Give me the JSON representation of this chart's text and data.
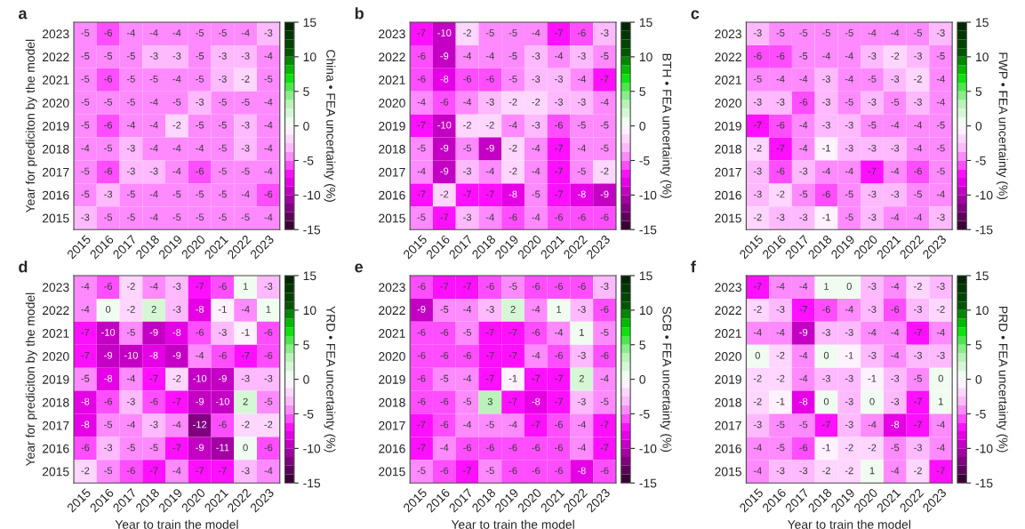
{
  "chart_data": [
    {
      "type": "heatmap",
      "title": "a",
      "ylabel": "Year for prediciton by the model",
      "clabel": "China • FEA uncertainty (%)",
      "data_labels": true,
      "categories": [
        "2015",
        "2016",
        "2017",
        "2018",
        "2019",
        "2020",
        "2021",
        "2022",
        "2023"
      ],
      "y_categories": [
        "2023",
        "2022",
        "2021",
        "2020",
        "2019",
        "2018",
        "2017",
        "2016",
        "2015"
      ],
      "clim": [
        -15,
        15
      ],
      "cticks": [
        -15,
        -10,
        -5,
        0,
        5,
        10,
        15
      ],
      "cells": [
        [
          -5,
          -6,
          -4,
          -4,
          -4,
          -5,
          -5,
          -4,
          -3
        ],
        [
          -5,
          -5,
          -5,
          -3,
          -3,
          -5,
          -3,
          -3,
          -4
        ],
        [
          -5,
          -6,
          -5,
          -5,
          -4,
          -5,
          -3,
          -2,
          -5
        ],
        [
          -5,
          -5,
          -5,
          -4,
          -5,
          -3,
          -5,
          -5,
          -4
        ],
        [
          -5,
          -6,
          -4,
          -4,
          -2,
          -5,
          -5,
          -3,
          -4
        ],
        [
          -4,
          -5,
          -3,
          -4,
          -4,
          -4,
          -5,
          -3,
          -4
        ],
        [
          -5,
          -6,
          -3,
          -3,
          -4,
          -6,
          -5,
          -5,
          -4
        ],
        [
          -5,
          -3,
          -5,
          -4,
          -5,
          -5,
          -5,
          -4,
          -6
        ],
        [
          -3,
          -5,
          -5,
          -4,
          -5,
          -5,
          -5,
          -5,
          -4
        ]
      ]
    },
    {
      "type": "heatmap",
      "title": "b",
      "clabel": "BTH • FEA uncertainty (%)",
      "data_labels": true,
      "categories": [
        "2015",
        "2016",
        "2017",
        "2018",
        "2019",
        "2020",
        "2021",
        "2022",
        "2023"
      ],
      "y_categories": [
        "2023",
        "2022",
        "2021",
        "2020",
        "2019",
        "2018",
        "2017",
        "2016",
        "2015"
      ],
      "clim": [
        -15,
        15
      ],
      "cticks": [
        -15,
        -10,
        -5,
        0,
        5,
        10,
        15
      ],
      "cells": [
        [
          -7,
          -10,
          -2,
          -5,
          -5,
          -4,
          -7,
          -6,
          -3
        ],
        [
          -6,
          -9,
          -4,
          -4,
          -5,
          -3,
          -4,
          -3,
          -5
        ],
        [
          -6,
          -8,
          -6,
          -6,
          -5,
          -3,
          -3,
          -4,
          -7
        ],
        [
          -4,
          -6,
          -4,
          -3,
          -2,
          -2,
          -3,
          -3,
          -4
        ],
        [
          -7,
          -10,
          -2,
          -2,
          -4,
          -3,
          -6,
          -5,
          -5
        ],
        [
          -5,
          -9,
          -5,
          -9,
          -2,
          -4,
          -7,
          -4,
          -5
        ],
        [
          -4,
          -9,
          -3,
          -4,
          -2,
          -4,
          -7,
          -5,
          -2
        ],
        [
          -7,
          -2,
          -7,
          -7,
          -8,
          -5,
          -7,
          -8,
          -9
        ],
        [
          -5,
          -7,
          -3,
          -4,
          -6,
          -4,
          -6,
          -6,
          -6
        ]
      ]
    },
    {
      "type": "heatmap",
      "title": "c",
      "clabel": "FWP • FEA uncertainty (%)",
      "data_labels": true,
      "categories": [
        "2015",
        "2016",
        "2017",
        "2018",
        "2019",
        "2020",
        "2021",
        "2022",
        "2023"
      ],
      "y_categories": [
        "2023",
        "2022",
        "2021",
        "2020",
        "2019",
        "2018",
        "2017",
        "2016",
        "2015"
      ],
      "clim": [
        -15,
        15
      ],
      "cticks": [
        -15,
        -10,
        -5,
        0,
        5,
        10,
        15
      ],
      "cells": [
        [
          -3,
          -5,
          -5,
          -5,
          -5,
          -4,
          -4,
          -5,
          -3
        ],
        [
          -6,
          -6,
          -5,
          -4,
          -4,
          -3,
          -2,
          -3,
          -5
        ],
        [
          -5,
          -4,
          -4,
          -3,
          -4,
          -5,
          -3,
          -2,
          -4
        ],
        [
          -3,
          -3,
          -6,
          -3,
          -5,
          -3,
          -5,
          -3,
          -4
        ],
        [
          -7,
          -6,
          -4,
          -3,
          -3,
          -5,
          -4,
          -4,
          -5
        ],
        [
          -2,
          -7,
          -4,
          -1,
          -3,
          -3,
          -3,
          -4,
          -5
        ],
        [
          -3,
          -6,
          -3,
          -4,
          -4,
          -7,
          -4,
          -6,
          -5
        ],
        [
          -3,
          -2,
          -5,
          -6,
          -5,
          -3,
          -3,
          -5,
          -4
        ],
        [
          -2,
          -3,
          -3,
          -1,
          -5,
          -3,
          -4,
          -4,
          -3
        ]
      ]
    },
    {
      "type": "heatmap",
      "title": "d",
      "xlabel": "Year to train the model",
      "ylabel": "Year for prediciton by the model",
      "clabel": "YRD • FEA uncertainty (%)",
      "data_labels": true,
      "categories": [
        "2015",
        "2016",
        "2017",
        "2018",
        "2019",
        "2020",
        "2021",
        "2022",
        "2023"
      ],
      "y_categories": [
        "2023",
        "2022",
        "2021",
        "2020",
        "2019",
        "2018",
        "2017",
        "2016",
        "2015"
      ],
      "clim": [
        -15,
        15
      ],
      "cticks": [
        -15,
        -10,
        -5,
        0,
        5,
        10,
        15
      ],
      "cells": [
        [
          -4,
          -6,
          -2,
          -4,
          -3,
          -7,
          -6,
          1,
          -3
        ],
        [
          -4,
          0,
          -2,
          2,
          -3,
          -8,
          -1,
          -4,
          1
        ],
        [
          -7,
          -10,
          -5,
          -9,
          -8,
          -6,
          -3,
          -1,
          -6
        ],
        [
          -7,
          -9,
          -10,
          -8,
          -9,
          -4,
          -6,
          -7,
          -6
        ],
        [
          -5,
          -8,
          -4,
          -7,
          -2,
          -10,
          -9,
          -3,
          -3
        ],
        [
          -8,
          -6,
          -3,
          -6,
          -7,
          -9,
          -10,
          2,
          -5
        ],
        [
          -8,
          -5,
          -4,
          -3,
          -4,
          -12,
          -6,
          -2,
          -2
        ],
        [
          -6,
          -3,
          -5,
          -5,
          -7,
          -9,
          -11,
          0,
          -6
        ],
        [
          -2,
          -5,
          -6,
          -7,
          -4,
          -7,
          -7,
          -3,
          -4
        ]
      ]
    },
    {
      "type": "heatmap",
      "title": "e",
      "xlabel": "Year to train the model",
      "clabel": "SCB • FEA uncertainty (%)",
      "data_labels": true,
      "categories": [
        "2015",
        "2016",
        "2017",
        "2018",
        "2019",
        "2020",
        "2021",
        "2022",
        "2023"
      ],
      "y_categories": [
        "2023",
        "2022",
        "2021",
        "2020",
        "2019",
        "2018",
        "2017",
        "2016",
        "2015"
      ],
      "clim": [
        -15,
        15
      ],
      "cticks": [
        -15,
        -10,
        -5,
        0,
        5,
        10,
        15
      ],
      "cells": [
        [
          -6,
          -7,
          -7,
          -6,
          -5,
          -6,
          -6,
          -6,
          -3
        ],
        [
          -9,
          -5,
          -4,
          -3,
          2,
          -4,
          1,
          -3,
          -6
        ],
        [
          -6,
          -6,
          -5,
          -7,
          -7,
          -6,
          -4,
          1,
          -5
        ],
        [
          -6,
          -6,
          -6,
          -7,
          -7,
          -4,
          -6,
          -3,
          -6
        ],
        [
          -6,
          -5,
          -4,
          -7,
          -1,
          -7,
          -7,
          2,
          -4
        ],
        [
          -6,
          -6,
          -5,
          3,
          -7,
          -8,
          -7,
          -3,
          -5
        ],
        [
          -7,
          -6,
          -4,
          -5,
          -4,
          -7,
          -6,
          -4,
          -7
        ],
        [
          -7,
          -4,
          -6,
          -6,
          -6,
          -6,
          -6,
          -4,
          -7
        ],
        [
          -5,
          -6,
          -7,
          -5,
          -6,
          -6,
          -6,
          -8,
          -6
        ]
      ]
    },
    {
      "type": "heatmap",
      "title": "f",
      "xlabel": "Year to train the model",
      "clabel": "PRD • FEA uncertainty (%)",
      "data_labels": true,
      "categories": [
        "2015",
        "2016",
        "2017",
        "2018",
        "2019",
        "2020",
        "2021",
        "2022",
        "2023"
      ],
      "y_categories": [
        "2023",
        "2022",
        "2021",
        "2020",
        "2019",
        "2018",
        "2017",
        "2016",
        "2015"
      ],
      "clim": [
        -15,
        15
      ],
      "cticks": [
        -15,
        -10,
        -5,
        0,
        5,
        10,
        15
      ],
      "cells": [
        [
          -7,
          -4,
          -4,
          1,
          0,
          -3,
          -4,
          -2,
          -3
        ],
        [
          -2,
          -3,
          -7,
          -6,
          -4,
          -3,
          -6,
          -3,
          -2
        ],
        [
          -4,
          -4,
          -9,
          -3,
          -3,
          -4,
          -4,
          -7,
          -4
        ],
        [
          0,
          -2,
          -4,
          0,
          -1,
          -3,
          -4,
          -3,
          -3
        ],
        [
          -2,
          -2,
          -4,
          -3,
          -3,
          -1,
          -3,
          -5,
          0
        ],
        [
          -2,
          -1,
          -8,
          0,
          -3,
          0,
          -3,
          -7,
          1
        ],
        [
          -3,
          -5,
          -5,
          -7,
          -3,
          -4,
          -8,
          -7,
          -4
        ],
        [
          -4,
          -5,
          -6,
          -1,
          -2,
          -2,
          -5,
          -3,
          -4
        ],
        [
          -4,
          -3,
          -3,
          -2,
          -2,
          1,
          -4,
          -2,
          -7
        ]
      ]
    }
  ]
}
